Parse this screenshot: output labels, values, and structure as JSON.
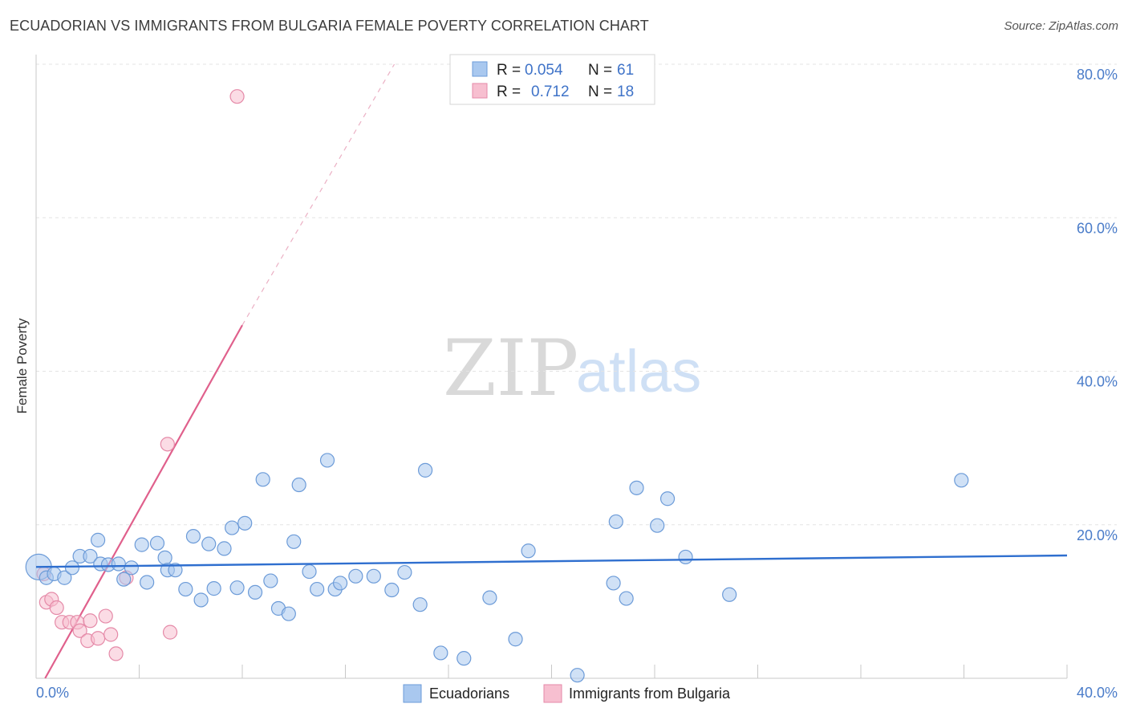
{
  "title": "ECUADORIAN VS IMMIGRANTS FROM BULGARIA FEMALE POVERTY CORRELATION CHART",
  "source": "Source: ZipAtlas.com",
  "watermark": {
    "part1": "ZIP",
    "part2": "atlas"
  },
  "colors": {
    "blue_fill": "#a9c8ef",
    "blue_stroke": "#6c9bd8",
    "blue_line": "#2f6fcf",
    "pink_fill": "#f7bfd0",
    "pink_stroke": "#e58aa8",
    "pink_line": "#e0608c",
    "tick_color": "#4a7cc9",
    "grid": "#e3e3e3"
  },
  "legend": {
    "rows": [
      {
        "r_label": "R =",
        "r_value": "0.054",
        "n_label": "N =",
        "n_value": "61"
      },
      {
        "r_label": "R =",
        "r_value": "0.712",
        "n_label": "N =",
        "n_value": "18"
      }
    ]
  },
  "chart_data": {
    "type": "scatter",
    "title": "ECUADORIAN VS IMMIGRANTS FROM BULGARIA FEMALE POVERTY CORRELATION CHART",
    "xlabel": "",
    "ylabel": "Female Poverty",
    "xlim": [
      0,
      40
    ],
    "ylim": [
      0,
      80
    ],
    "x_tick_labels": [
      "0.0%",
      "40.0%"
    ],
    "y_ticks": [
      20,
      40,
      60,
      80
    ],
    "y_tick_labels": [
      "20.0%",
      "40.0%",
      "60.0%",
      "80.0%"
    ],
    "grid": true,
    "series": [
      {
        "name": "Ecuadorians",
        "r": 0.054,
        "n": 61,
        "trend": {
          "x0": 0,
          "y0": 14.5,
          "x1": 40,
          "y1": 16.0
        },
        "points": [
          [
            0.1,
            14.5
          ],
          [
            0.4,
            13.1
          ],
          [
            0.7,
            13.6
          ],
          [
            1.1,
            13.1
          ],
          [
            1.4,
            14.4
          ],
          [
            1.7,
            15.9
          ],
          [
            2.1,
            15.9
          ],
          [
            2.4,
            18.0
          ],
          [
            2.5,
            14.9
          ],
          [
            2.8,
            14.8
          ],
          [
            3.2,
            14.9
          ],
          [
            3.4,
            12.9
          ],
          [
            3.7,
            14.4
          ],
          [
            4.1,
            17.4
          ],
          [
            4.3,
            12.5
          ],
          [
            4.7,
            17.6
          ],
          [
            5.0,
            15.7
          ],
          [
            5.1,
            14.1
          ],
          [
            5.4,
            14.1
          ],
          [
            5.8,
            11.6
          ],
          [
            6.1,
            18.5
          ],
          [
            6.4,
            10.2
          ],
          [
            6.7,
            17.5
          ],
          [
            6.9,
            11.7
          ],
          [
            7.3,
            16.9
          ],
          [
            7.6,
            19.6
          ],
          [
            7.8,
            11.8
          ],
          [
            8.1,
            20.2
          ],
          [
            8.5,
            11.2
          ],
          [
            8.8,
            25.9
          ],
          [
            9.1,
            12.7
          ],
          [
            9.4,
            9.1
          ],
          [
            9.8,
            8.4
          ],
          [
            10.0,
            17.8
          ],
          [
            10.2,
            25.2
          ],
          [
            10.6,
            13.9
          ],
          [
            10.9,
            11.6
          ],
          [
            11.3,
            28.4
          ],
          [
            11.6,
            11.6
          ],
          [
            11.8,
            12.4
          ],
          [
            12.4,
            13.3
          ],
          [
            13.1,
            13.3
          ],
          [
            13.8,
            11.5
          ],
          [
            14.3,
            13.8
          ],
          [
            14.9,
            9.6
          ],
          [
            15.1,
            27.1
          ],
          [
            15.7,
            3.3
          ],
          [
            16.6,
            2.6
          ],
          [
            17.6,
            10.5
          ],
          [
            18.6,
            5.1
          ],
          [
            19.1,
            16.6
          ],
          [
            21.0,
            0.4
          ],
          [
            22.4,
            12.4
          ],
          [
            22.5,
            20.4
          ],
          [
            22.9,
            10.4
          ],
          [
            23.3,
            24.8
          ],
          [
            24.1,
            19.9
          ],
          [
            24.5,
            23.4
          ],
          [
            25.2,
            15.8
          ],
          [
            26.9,
            10.9
          ],
          [
            35.9,
            25.8
          ]
        ]
      },
      {
        "name": "Immigrants from Bulgaria",
        "r": 0.712,
        "n": 18,
        "trend": {
          "x0": 0.35,
          "y0": 0,
          "x1": 8.0,
          "y1": 46.0
        },
        "trend_dashed": {
          "x0": 8.0,
          "y0": 46.0,
          "x1": 13.9,
          "y1": 80.0
        },
        "points": [
          [
            0.3,
            13.6
          ],
          [
            0.4,
            9.9
          ],
          [
            0.6,
            10.3
          ],
          [
            0.8,
            9.2
          ],
          [
            1.0,
            7.3
          ],
          [
            1.3,
            7.3
          ],
          [
            1.6,
            7.3
          ],
          [
            1.7,
            6.2
          ],
          [
            2.0,
            4.9
          ],
          [
            2.1,
            7.5
          ],
          [
            2.4,
            5.2
          ],
          [
            2.7,
            8.1
          ],
          [
            2.9,
            5.7
          ],
          [
            3.1,
            3.2
          ],
          [
            3.5,
            13.1
          ],
          [
            5.1,
            30.5
          ],
          [
            5.2,
            6.0
          ],
          [
            7.8,
            75.8
          ]
        ]
      }
    ]
  },
  "bottom_legend": {
    "series1": "Ecuadorians",
    "series2": "Immigrants from Bulgaria"
  }
}
